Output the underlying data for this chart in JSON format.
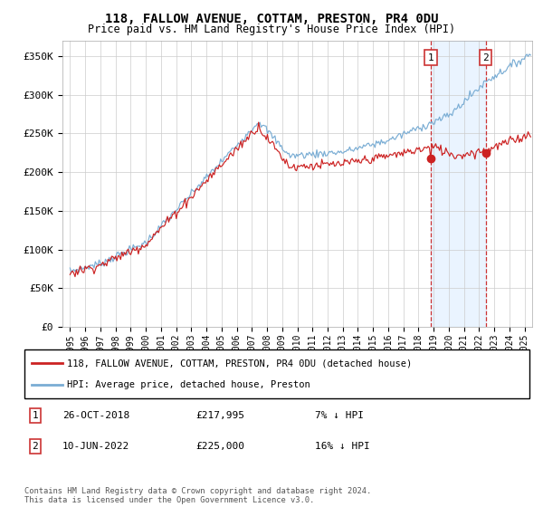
{
  "title": "118, FALLOW AVENUE, COTTAM, PRESTON, PR4 0DU",
  "subtitle": "Price paid vs. HM Land Registry's House Price Index (HPI)",
  "ylabel_ticks": [
    "£0",
    "£50K",
    "£100K",
    "£150K",
    "£200K",
    "£250K",
    "£300K",
    "£350K"
  ],
  "ytick_values": [
    0,
    50000,
    100000,
    150000,
    200000,
    250000,
    300000,
    350000
  ],
  "ylim": [
    0,
    370000
  ],
  "xlim_start": 1994.5,
  "xlim_end": 2025.5,
  "hpi_color": "#7aadd4",
  "price_color": "#cc2222",
  "marker1_x": 2018.82,
  "marker2_x": 2022.44,
  "marker1_price": 217995,
  "marker2_price": 225000,
  "legend_label1": "118, FALLOW AVENUE, COTTAM, PRESTON, PR4 0DU (detached house)",
  "legend_label2": "HPI: Average price, detached house, Preston",
  "footnote": "Contains HM Land Registry data © Crown copyright and database right 2024.\nThis data is licensed under the Open Government Licence v3.0.",
  "background_color": "#ffffff",
  "plot_bg_color": "#ffffff",
  "grid_color": "#cccccc",
  "shade_color": "#ddeeff"
}
